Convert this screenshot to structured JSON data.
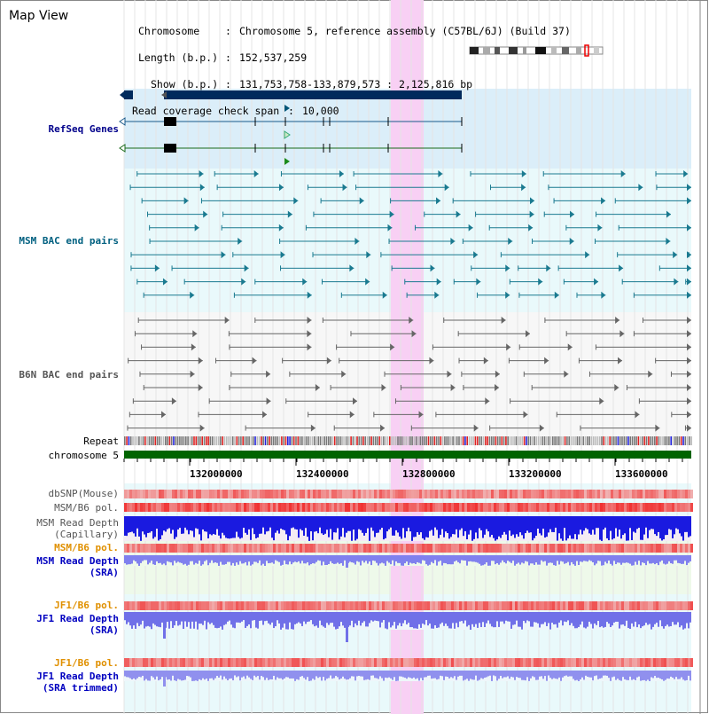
{
  "header": {
    "title": "Map View",
    "chromosome_key": "Chromosome",
    "chromosome_value": "Chromosome 5, reference assembly (C57BL/6J) (Build 37)",
    "length_key": "Length (b.p.)",
    "length_value": "152,537,259",
    "show_key": "Show (b.p.)",
    "show_value": "131,753,758-133,879,573 : 2,125,816 bp",
    "coverage_key": "Read coverage check span",
    "coverage_value": "10,000"
  },
  "tracks": {
    "refseq": "RefSeq Genes",
    "msm_bac": "MSM BAC end pairs",
    "b6n_bac": "B6N BAC end pairs",
    "repeat": "Repeat",
    "chromosome": "chromosome 5",
    "dbsnp": "dbSNP(Mouse)",
    "msm_b6_pol": "MSM/B6 pol.",
    "msm_depth_cap_1": "MSM Read Depth",
    "msm_depth_cap_2": "(Capillary)",
    "msm_b6_pol_2": "MSM/B6 pol.",
    "msm_depth_sra_1": "MSM Read Depth",
    "msm_depth_sra_2": "(SRA)",
    "jf1_b6_pol": "JF1/B6 pol.",
    "jf1_depth_sra_1": "JF1 Read Depth",
    "jf1_depth_sra_2": "(SRA)",
    "jf1_b6_pol_2": "JF1/B6 pol.",
    "jf1_depth_trim_1": "JF1 Read Depth",
    "jf1_depth_trim_2": "(SRA trimmed)"
  },
  "axis": {
    "ticks": [
      "132000000",
      "132400000",
      "132800000",
      "133200000",
      "133600000"
    ]
  },
  "colors": {
    "refseq_label": "#00008b",
    "msm_bac_label": "#006080",
    "b6n_bac_label": "#555555",
    "orange_label": "#e09000",
    "blue_label": "#0000c0",
    "highlight": "#f8d0f4",
    "chromosome_bar": "#006400"
  }
}
